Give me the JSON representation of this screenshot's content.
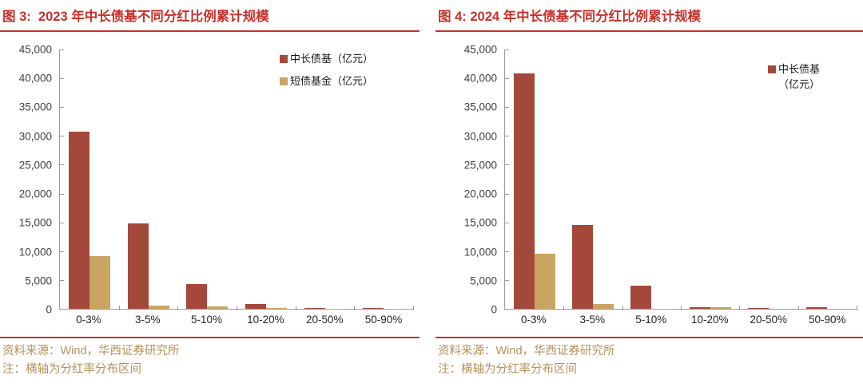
{
  "colors": {
    "title_red": "#C8302A",
    "bar_red": "#A4483B",
    "bar_gold": "#C9A462",
    "source_tan": "#B5915A",
    "axis_gray": "#9A9A9A",
    "tick_label_gray": "#404040"
  },
  "chart_data": [
    {
      "id": "figure-3",
      "type": "bar",
      "title": "图 3:  2023 年中长债基不同分红比例累计规模",
      "categories": [
        "0-3%",
        "3-5%",
        "5-10%",
        "10-20%",
        "20-50%",
        "50-90%"
      ],
      "series": [
        {
          "name": "中长债基（亿元）",
          "color": "#A4483B",
          "values": [
            30700,
            14800,
            4300,
            800,
            150,
            150
          ]
        },
        {
          "name": "短债基金（亿元）",
          "color": "#C9A462",
          "values": [
            9100,
            600,
            400,
            100,
            50,
            50
          ]
        }
      ],
      "ylim": [
        0,
        45000
      ],
      "ytick_step": 5000,
      "xlabel": "",
      "ylabel": "",
      "grid": false,
      "legend": {
        "position": "top-right",
        "entries": [
          {
            "label_lines": [
              "中长债基（亿元）"
            ],
            "color": "#A4483B"
          },
          {
            "label_lines": [
              "短债基金（亿元）"
            ],
            "color": "#C9A462"
          }
        ]
      },
      "source": "资料来源：Wind，华西证券研究所",
      "note": "注：横轴为分红率分布区间"
    },
    {
      "id": "figure-4",
      "type": "bar",
      "title": "图 4: 2024 年中长债基不同分红比例累计规模",
      "categories": [
        "0-3%",
        "3-5%",
        "5-10%",
        "10-20%",
        "20-50%",
        "50-90%"
      ],
      "series": [
        {
          "name": "中长债基（亿元）",
          "color": "#A4483B",
          "values": [
            40900,
            14600,
            4000,
            250,
            150,
            250
          ]
        },
        {
          "name": "短债基金（亿元）",
          "color": "#C9A462",
          "values": [
            9500,
            900,
            50,
            250,
            0,
            0
          ]
        }
      ],
      "ylim": [
        0,
        45000
      ],
      "ytick_step": 5000,
      "xlabel": "",
      "ylabel": "",
      "grid": false,
      "legend": {
        "position": "top-right",
        "entries": [
          {
            "label_lines": [
              "中长债基",
              "（亿元）"
            ],
            "color": "#A4483B"
          }
        ]
      },
      "source": "资料来源：Wind，华西证券研究所",
      "note": "注：横轴为分红率分布区间"
    }
  ]
}
